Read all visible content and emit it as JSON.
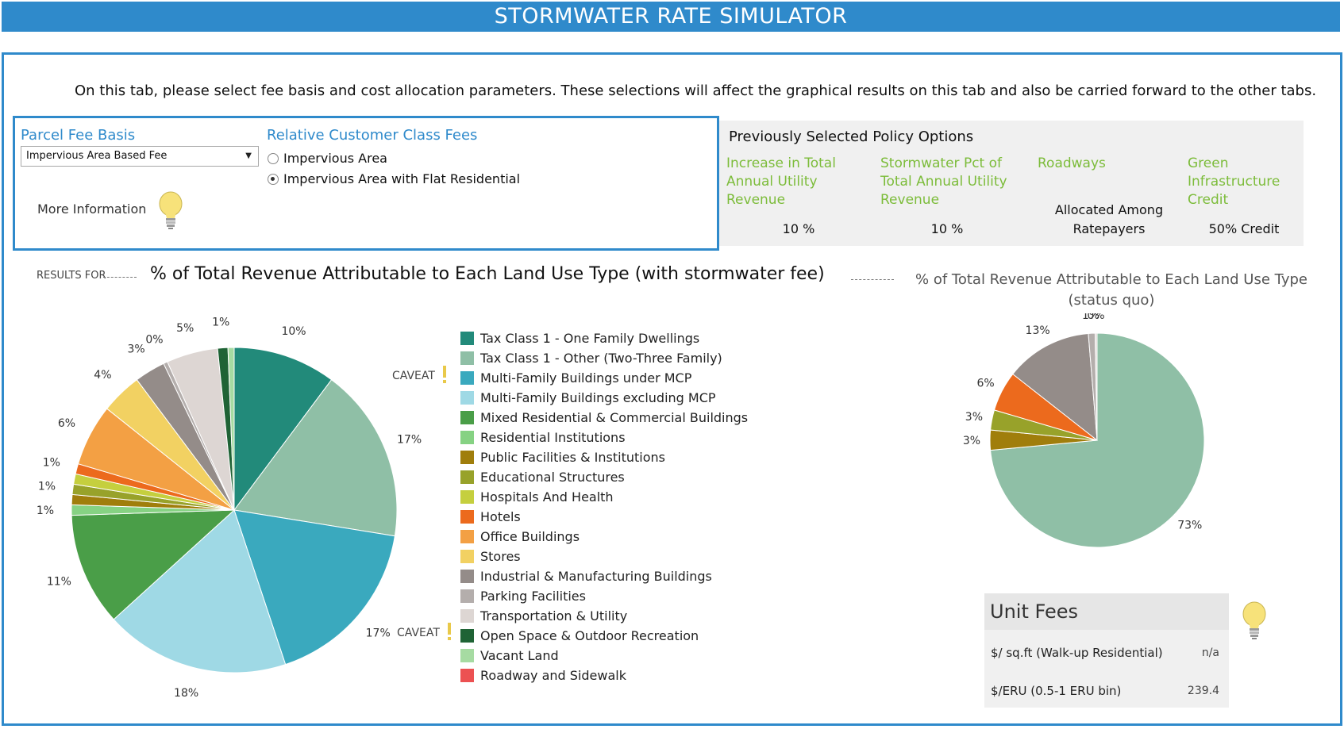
{
  "header": {
    "title": "STORMWATER RATE SIMULATOR"
  },
  "intro": "On this tab, please select fee basis and cost allocation parameters.  These selections will affect the graphical results on this tab and also be carried forward to the other tabs.",
  "fee_basis": {
    "heading": "Parcel Fee Basis",
    "selected": "Impervious Area Based Fee",
    "more_info": "More Information"
  },
  "customer_class": {
    "heading": "Relative Customer Class Fees",
    "options": [
      {
        "label": "Impervious Area",
        "checked": false
      },
      {
        "label": "Impervious Area with Flat Residential",
        "checked": true
      }
    ]
  },
  "policy": {
    "title": "Previously Selected Policy Options",
    "items": [
      {
        "label": "Increase in Total Annual Utility Revenue",
        "value": "10 %"
      },
      {
        "label": "Stormwater Pct of Total Annual Utility Revenue",
        "value": "10 %"
      },
      {
        "label": "Roadways",
        "value": "Allocated Among Ratepayers"
      },
      {
        "label": "Green Infrastructure Credit",
        "value": "50% Credit"
      }
    ]
  },
  "results": {
    "prefix": "RESULTS FOR",
    "title": "% of Total Revenue Attributable to Each Land Use Type (with stormwater fee)",
    "status_quo_title": "% of Total Revenue Attributable to Each Land Use Type (status quo)",
    "caveat_label": "CAVEAT"
  },
  "colors": {
    "accent": "#2f8acb",
    "policy_label": "#7cbc3a",
    "caveat": "#e9c94a"
  },
  "legend": [
    {
      "label": "Tax Class 1 - One Family Dwellings",
      "color": "#228a7a"
    },
    {
      "label": "Tax Class 1 - Other (Two-Three Family)",
      "color": "#8fbfa6"
    },
    {
      "label": "Multi-Family Buildings under MCP",
      "color": "#3aa9be"
    },
    {
      "label": "Multi-Family Buildings excluding MCP",
      "color": "#9fd9e5"
    },
    {
      "label": "Mixed Residential & Commercial Buildings",
      "color": "#4a9e48"
    },
    {
      "label": "Residential Institutions",
      "color": "#86d283"
    },
    {
      "label": "Public Facilities & Institutions",
      "color": "#a07e0c"
    },
    {
      "label": "Educational Structures",
      "color": "#98a22a"
    },
    {
      "label": "Hospitals And Health",
      "color": "#c5cf3e"
    },
    {
      "label": "Hotels",
      "color": "#ec6a1d"
    },
    {
      "label": "Office Buildings",
      "color": "#f3a044"
    },
    {
      "label": "Stores",
      "color": "#f2d162"
    },
    {
      "label": "Industrial & Manufacturing Buildings",
      "color": "#948c89"
    },
    {
      "label": "Parking Facilities",
      "color": "#b4aeac"
    },
    {
      "label": "Transportation & Utility",
      "color": "#ddd6d3"
    },
    {
      "label": "Open Space & Outdoor Recreation",
      "color": "#1f6335"
    },
    {
      "label": "Vacant Land",
      "color": "#a6dba2"
    },
    {
      "label": "Roadway and Sidewalk",
      "color": "#ec5152"
    }
  ],
  "chart_data": [
    {
      "type": "pie",
      "title": "% of Total Revenue Attributable to Each Land Use Type (with stormwater fee)",
      "slices": [
        {
          "label": "Tax Class 1 - One Family Dwellings",
          "value": 10,
          "text": "10%",
          "color": "#228a7a"
        },
        {
          "label": "Tax Class 1 - Other (Two-Three Family)",
          "value": 17,
          "text": "17%",
          "color": "#8fbfa6"
        },
        {
          "label": "Multi-Family Buildings under MCP",
          "value": 17,
          "text": "17%",
          "color": "#3aa9be"
        },
        {
          "label": "Multi-Family Buildings excluding MCP",
          "value": 18,
          "text": "18%",
          "color": "#9fd9e5"
        },
        {
          "label": "Mixed Residential & Commercial Buildings",
          "value": 11,
          "text": "11%",
          "color": "#4a9e48"
        },
        {
          "label": "Residential Institutions",
          "value": 1,
          "text": "1%",
          "color": "#86d283"
        },
        {
          "label": "Public Facilities & Institutions",
          "value": 1,
          "text": "",
          "color": "#a07e0c"
        },
        {
          "label": "Educational Structures",
          "value": 1,
          "text": "1%",
          "color": "#98a22a"
        },
        {
          "label": "Hospitals And Health",
          "value": 1,
          "text": "",
          "color": "#c5cf3e"
        },
        {
          "label": "Hotels",
          "value": 1,
          "text": "1%",
          "color": "#ec6a1d"
        },
        {
          "label": "Office Buildings",
          "value": 6,
          "text": "6%",
          "color": "#f3a044"
        },
        {
          "label": "Stores",
          "value": 4,
          "text": "4%",
          "color": "#f2d162"
        },
        {
          "label": "Industrial & Manufacturing Buildings",
          "value": 3,
          "text": "3%",
          "color": "#948c89"
        },
        {
          "label": "Parking Facilities",
          "value": 0.4,
          "text": "0%",
          "color": "#b4aeac"
        },
        {
          "label": "Transportation & Utility",
          "value": 5,
          "text": "5%",
          "color": "#ddd6d3"
        },
        {
          "label": "Open Space & Outdoor Recreation",
          "value": 1,
          "text": "1%",
          "color": "#1f6335"
        },
        {
          "label": "Vacant Land",
          "value": 0.6,
          "text": "",
          "color": "#a6dba2"
        }
      ]
    },
    {
      "type": "pie",
      "title": "% of Total Revenue Attributable to Each Land Use Type (status quo)",
      "slices": [
        {
          "label": "Tax Class 1 - Other (Two-Three Family)",
          "value": 73,
          "text": "73%",
          "color": "#8fbfa6"
        },
        {
          "label": "Public Facilities & Institutions",
          "value": 3,
          "text": "3%",
          "color": "#a07e0c"
        },
        {
          "label": "Educational Structures",
          "value": 3,
          "text": "3%",
          "color": "#98a22a"
        },
        {
          "label": "Hotels",
          "value": 6,
          "text": "6%",
          "color": "#ec6a1d"
        },
        {
          "label": "Industrial & Manufacturing Buildings",
          "value": 13,
          "text": "13%",
          "color": "#948c89"
        },
        {
          "label": "Parking Facilities",
          "value": 1,
          "text": "1%",
          "color": "#b4aeac"
        },
        {
          "label": "Transportation & Utility",
          "value": 0.3,
          "text": "0%",
          "color": "#ddd6d3"
        }
      ]
    }
  ],
  "unit_fees": {
    "heading": "Unit Fees",
    "rows": [
      {
        "label": "$/ sq.ft (Walk-up Residential)",
        "value": "n/a"
      },
      {
        "label": "$/ERU (0.5-1 ERU bin)",
        "value": "239.4"
      }
    ]
  }
}
